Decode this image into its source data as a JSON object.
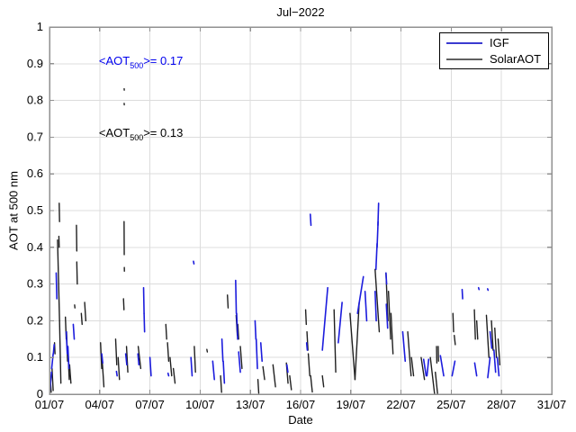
{
  "title": "Jul−2022",
  "annotations": [
    {
      "pre": "<AOT",
      "sub": "500",
      "post": ">= 0.17",
      "color": "#0000ee",
      "x_day": 3.95,
      "y_val": 0.905
    },
    {
      "pre": "<AOT",
      "sub": "500",
      "post": ">= 0.13",
      "color": "#000000",
      "x_day": 3.95,
      "y_val": 0.708
    }
  ],
  "chart_data": {
    "type": "line",
    "title": "Jul−2022",
    "xlabel": "Date",
    "ylabel": "AOT at 500 nm",
    "xlim_days": [
      1,
      31
    ],
    "ylim": [
      0,
      1
    ],
    "grid": true,
    "legend_position": "top-right",
    "colors": {
      "grid": "#dcdcdc",
      "box": "#909090",
      "tick": "#909090"
    },
    "xticks": [
      {
        "day": 1,
        "label": "01/07"
      },
      {
        "day": 4,
        "label": "04/07"
      },
      {
        "day": 7,
        "label": "07/07"
      },
      {
        "day": 10,
        "label": "10/07"
      },
      {
        "day": 13,
        "label": "13/07"
      },
      {
        "day": 16,
        "label": "16/07"
      },
      {
        "day": 19,
        "label": "19/07"
      },
      {
        "day": 22,
        "label": "22/07"
      },
      {
        "day": 25,
        "label": "25/07"
      },
      {
        "day": 28,
        "label": "28/07"
      },
      {
        "day": 31,
        "label": "31/07"
      }
    ],
    "yticks": [
      {
        "v": 0,
        "label": "0"
      },
      {
        "v": 0.1,
        "label": "0.1"
      },
      {
        "v": 0.2,
        "label": "0.2"
      },
      {
        "v": 0.3,
        "label": "0.3"
      },
      {
        "v": 0.4,
        "label": "0.4"
      },
      {
        "v": 0.5,
        "label": "0.5"
      },
      {
        "v": 0.6,
        "label": "0.6"
      },
      {
        "v": 0.7,
        "label": "0.7"
      },
      {
        "v": 0.8,
        "label": "0.8"
      },
      {
        "v": 0.9,
        "label": "0.9"
      },
      {
        "v": 1,
        "label": "1"
      }
    ],
    "series": [
      {
        "name": "SolarAOT",
        "color": "#1f1f1f",
        "legend_color": "#606060",
        "mean_aot500": 0.13,
        "stroke_width": 1.4,
        "segments": [
          [
            1.05,
            0.04,
            1.1,
            0.005
          ],
          [
            1.15,
            0.07,
            1.22,
            0.01
          ],
          [
            1.3,
            0.14,
            1.33,
            0.11
          ],
          [
            1.56,
            0.43,
            1.58,
            0.4
          ],
          [
            1.58,
            0.52,
            1.6,
            0.47
          ],
          [
            1.48,
            0.42,
            1.6,
            0.2
          ],
          [
            1.6,
            0.2,
            1.68,
            0.03
          ],
          [
            1.95,
            0.21,
            2.0,
            0.15
          ],
          [
            2.02,
            0.17,
            2.08,
            0.09
          ],
          [
            2.1,
            0.12,
            2.18,
            0.04
          ],
          [
            2.2,
            0.08,
            2.28,
            0.03
          ],
          [
            2.5,
            0.243,
            2.52,
            0.235
          ],
          [
            2.61,
            0.46,
            2.63,
            0.39
          ],
          [
            2.63,
            0.36,
            2.66,
            0.3
          ],
          [
            2.9,
            0.22,
            2.95,
            0.19
          ],
          [
            3.1,
            0.25,
            3.17,
            0.2
          ],
          [
            4.05,
            0.14,
            4.12,
            0.07
          ],
          [
            4.15,
            0.09,
            4.25,
            0.02
          ],
          [
            4.95,
            0.15,
            5.02,
            0.08
          ],
          [
            5.1,
            0.1,
            5.18,
            0.04
          ],
          [
            5.42,
            0.26,
            5.45,
            0.23
          ],
          [
            5.455,
            0.47,
            5.465,
            0.38
          ],
          [
            5.47,
            0.345,
            5.475,
            0.335
          ],
          [
            5.46,
            0.832,
            5.468,
            0.828
          ],
          [
            5.46,
            0.792,
            5.468,
            0.788
          ],
          [
            5.6,
            0.13,
            5.68,
            0.06
          ],
          [
            6.3,
            0.13,
            6.45,
            0.07
          ],
          [
            7.95,
            0.19,
            8.0,
            0.15
          ],
          [
            8.05,
            0.14,
            8.12,
            0.09
          ],
          [
            8.2,
            0.1,
            8.3,
            0.05
          ],
          [
            8.4,
            0.07,
            8.5,
            0.03
          ],
          [
            9.65,
            0.13,
            9.72,
            0.06
          ],
          [
            10.4,
            0.122,
            10.43,
            0.115
          ],
          [
            11.22,
            0.05,
            11.28,
            0.005
          ],
          [
            11.63,
            0.27,
            11.67,
            0.235
          ],
          [
            12.15,
            0.215,
            12.22,
            0.16
          ],
          [
            12.25,
            0.19,
            12.3,
            0.15
          ],
          [
            12.4,
            0.13,
            12.5,
            0.07
          ],
          [
            13.45,
            0.04,
            13.5,
            0.003
          ],
          [
            13.75,
            0.075,
            13.85,
            0.04
          ],
          [
            14.35,
            0.08,
            14.5,
            0.02
          ],
          [
            15.15,
            0.085,
            15.25,
            0.03
          ],
          [
            15.35,
            0.05,
            15.45,
            0.012
          ],
          [
            16.3,
            0.23,
            16.34,
            0.19
          ],
          [
            16.38,
            0.17,
            16.44,
            0.12
          ],
          [
            16.46,
            0.11,
            16.55,
            0.05
          ],
          [
            16.6,
            0.05,
            16.7,
            0.006
          ],
          [
            17.3,
            0.05,
            17.38,
            0.02
          ],
          [
            18.0,
            0.23,
            18.1,
            0.06
          ],
          [
            18.95,
            0.22,
            19.25,
            0.04
          ],
          [
            19.25,
            0.04,
            19.5,
            0.25
          ],
          [
            20.45,
            0.34,
            20.7,
            0.17
          ],
          [
            21.1,
            0.33,
            21.22,
            0.2
          ],
          [
            21.25,
            0.28,
            21.38,
            0.15
          ],
          [
            21.4,
            0.22,
            21.52,
            0.11
          ],
          [
            22.4,
            0.17,
            22.6,
            0.05
          ],
          [
            22.62,
            0.1,
            22.75,
            0.05
          ],
          [
            23.2,
            0.1,
            23.4,
            0.04
          ],
          [
            23.75,
            0.1,
            24.0,
            0.002
          ],
          [
            24.05,
            0.06,
            24.18,
            0.002
          ],
          [
            24.12,
            0.13,
            24.14,
            0.085
          ],
          [
            24.22,
            0.13,
            24.24,
            0.09
          ],
          [
            25.1,
            0.22,
            25.14,
            0.17
          ],
          [
            25.18,
            0.16,
            25.24,
            0.135
          ],
          [
            26.38,
            0.23,
            26.44,
            0.15
          ],
          [
            26.52,
            0.2,
            26.58,
            0.15
          ],
          [
            27.1,
            0.215,
            27.25,
            0.1
          ],
          [
            27.4,
            0.2,
            27.5,
            0.12
          ],
          [
            27.6,
            0.18,
            27.7,
            0.1
          ],
          [
            27.8,
            0.15,
            27.9,
            0.08
          ]
        ]
      },
      {
        "name": "IGF",
        "color": "#1c1cdd",
        "legend_color": "#3a3ad0",
        "mean_aot500": 0.17,
        "stroke_width": 1.6,
        "segments": [
          [
            1.02,
            0.01,
            1.12,
            0.06
          ],
          [
            1.13,
            0.07,
            1.22,
            0.11
          ],
          [
            1.23,
            0.11,
            1.28,
            0.135
          ],
          [
            1.4,
            0.33,
            1.44,
            0.26
          ],
          [
            2.0,
            0.17,
            2.06,
            0.11
          ],
          [
            2.1,
            0.13,
            2.16,
            0.07
          ],
          [
            2.42,
            0.19,
            2.48,
            0.15
          ],
          [
            4.12,
            0.11,
            4.18,
            0.085
          ],
          [
            5.0,
            0.062,
            5.04,
            0.05
          ],
          [
            5.55,
            0.11,
            5.62,
            0.08
          ],
          [
            6.28,
            0.11,
            6.34,
            0.08
          ],
          [
            6.62,
            0.29,
            6.65,
            0.22
          ],
          [
            6.65,
            0.22,
            6.68,
            0.17
          ],
          [
            7.0,
            0.1,
            7.07,
            0.05
          ],
          [
            8.08,
            0.057,
            8.12,
            0.05
          ],
          [
            9.45,
            0.1,
            9.52,
            0.05
          ],
          [
            9.6,
            0.362,
            9.63,
            0.355
          ],
          [
            10.75,
            0.09,
            10.85,
            0.04
          ],
          [
            11.3,
            0.15,
            11.36,
            0.09
          ],
          [
            11.38,
            0.09,
            11.45,
            0.03
          ],
          [
            12.12,
            0.31,
            12.16,
            0.22
          ],
          [
            12.18,
            0.22,
            12.24,
            0.15
          ],
          [
            12.3,
            0.115,
            12.4,
            0.06
          ],
          [
            13.28,
            0.2,
            13.33,
            0.15
          ],
          [
            13.35,
            0.15,
            13.42,
            0.07
          ],
          [
            13.62,
            0.14,
            13.7,
            0.09
          ],
          [
            15.18,
            0.08,
            15.24,
            0.06
          ],
          [
            16.36,
            0.14,
            16.4,
            0.12
          ],
          [
            16.58,
            0.49,
            16.62,
            0.46
          ],
          [
            17.3,
            0.12,
            17.62,
            0.29
          ],
          [
            18.25,
            0.14,
            18.48,
            0.25
          ],
          [
            19.4,
            0.22,
            19.75,
            0.32
          ],
          [
            19.85,
            0.28,
            19.95,
            0.2
          ],
          [
            20.45,
            0.28,
            20.52,
            0.2
          ],
          [
            20.5,
            0.34,
            20.57,
            0.41
          ],
          [
            20.57,
            0.4,
            20.63,
            0.47
          ],
          [
            20.62,
            0.46,
            20.66,
            0.52
          ],
          [
            21.1,
            0.33,
            21.14,
            0.3
          ],
          [
            21.12,
            0.245,
            21.2,
            0.18
          ],
          [
            22.1,
            0.17,
            22.25,
            0.09
          ],
          [
            23.35,
            0.095,
            23.5,
            0.05
          ],
          [
            23.55,
            0.05,
            23.65,
            0.095
          ],
          [
            24.35,
            0.105,
            24.55,
            0.05
          ],
          [
            25.05,
            0.05,
            25.22,
            0.09
          ],
          [
            25.65,
            0.285,
            25.68,
            0.26
          ],
          [
            26.4,
            0.085,
            26.52,
            0.05
          ],
          [
            26.63,
            0.29,
            26.66,
            0.285
          ],
          [
            27.17,
            0.287,
            27.2,
            0.283
          ],
          [
            27.18,
            0.045,
            27.32,
            0.1
          ],
          [
            27.32,
            0.17,
            27.42,
            0.125
          ],
          [
            27.55,
            0.12,
            27.65,
            0.06
          ],
          [
            27.75,
            0.1,
            27.85,
            0.05
          ]
        ]
      }
    ]
  },
  "legend": {
    "items": [
      {
        "label": "IGF"
      },
      {
        "label": "SolarAOT"
      }
    ]
  }
}
